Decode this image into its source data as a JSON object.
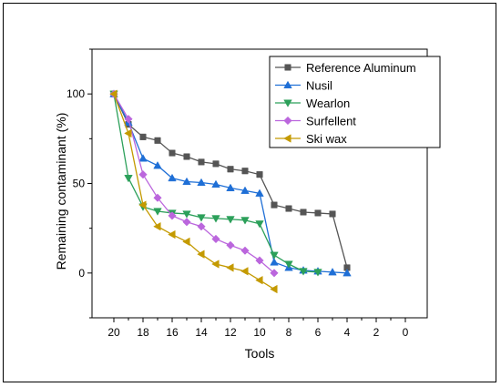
{
  "chart_data": {
    "type": "line",
    "xlabel": "Tools",
    "ylabel": "Remaining contaminant (%)",
    "xlim": [
      21.5,
      -1.5
    ],
    "ylim": [
      -25,
      125
    ],
    "x_ticks": [
      20,
      18,
      16,
      14,
      12,
      10,
      8,
      6,
      4,
      2,
      0
    ],
    "y_ticks": [
      0,
      50,
      100
    ],
    "grid": false,
    "legend_position": "top-right",
    "series": [
      {
        "name": "Reference Aluminum",
        "color": "#555555",
        "marker": "square",
        "x": [
          20,
          19,
          18,
          17,
          16,
          15,
          14,
          13,
          12,
          11,
          10,
          9,
          8,
          7,
          6,
          5,
          4
        ],
        "y": [
          100,
          83,
          76,
          74,
          67,
          65,
          62,
          61,
          58,
          57,
          55,
          38,
          36,
          34,
          33.5,
          33,
          3
        ]
      },
      {
        "name": "Nusil",
        "color": "#1f6fd6",
        "marker": "triangle-up",
        "x": [
          20,
          19,
          18,
          17,
          16,
          15,
          14,
          13,
          12,
          11,
          10,
          9,
          8,
          7,
          6,
          5,
          4
        ],
        "y": [
          100,
          84,
          64,
          60,
          53,
          51,
          50.5,
          49.5,
          47.5,
          46,
          44.5,
          6,
          3,
          1.5,
          1,
          0.5,
          0
        ]
      },
      {
        "name": "Wearlon",
        "color": "#2ca05a",
        "marker": "triangle-down",
        "x": [
          20,
          19,
          18,
          17,
          16,
          15,
          14,
          13,
          12,
          11,
          10,
          9,
          8,
          7,
          6
        ],
        "y": [
          100,
          53,
          37,
          34.5,
          33.5,
          33,
          31,
          30.5,
          30,
          29.5,
          27.5,
          10,
          5,
          1,
          0.5
        ]
      },
      {
        "name": "Surfellent",
        "color": "#bb66dd",
        "marker": "diamond",
        "x": [
          20,
          19,
          18,
          17,
          16,
          15,
          14,
          13,
          12,
          11,
          10,
          9
        ],
        "y": [
          100,
          86,
          55,
          42,
          32,
          28.5,
          26,
          19,
          15.5,
          12.5,
          7,
          0
        ]
      },
      {
        "name": "Ski wax",
        "color": "#c49a00",
        "marker": "triangle-left",
        "x": [
          20,
          19,
          18,
          17,
          16,
          15,
          14,
          13,
          12,
          11,
          10,
          9
        ],
        "y": [
          100,
          78,
          38,
          26,
          21.5,
          17.5,
          10.5,
          5,
          3,
          1,
          -4,
          -9
        ]
      }
    ]
  }
}
